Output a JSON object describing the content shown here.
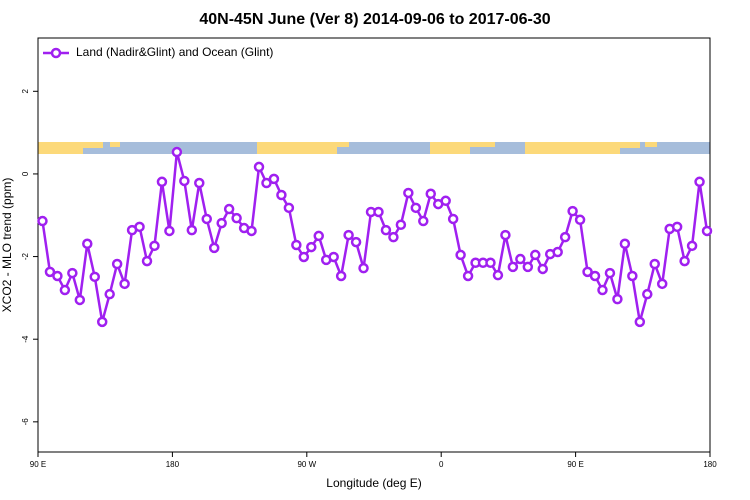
{
  "chart_data": {
    "type": "line",
    "title": "40N-45N June (Ver 8)   2014-09-06 to 2017-06-30",
    "x_label": "Longitude (deg E)",
    "y_label": "XCO2 - MLO trend (ppm)",
    "xlim": [
      90,
      540
    ],
    "xticks": [
      {
        "value": 90,
        "label": "90 E"
      },
      180,
      {
        "value": 270,
        "label": "90 W"
      },
      {
        "value": 360,
        "label": "0"
      },
      {
        "value": 450,
        "label": "90 E"
      },
      {
        "value": 540,
        "label": "180"
      }
    ],
    "ylim": [
      -6.73,
      3.29
    ],
    "yticks": [
      -6,
      -4,
      -2,
      0,
      2
    ],
    "legend_position": "top-left",
    "x": [
      93,
      98,
      103,
      108,
      113,
      118,
      123,
      128,
      133,
      138,
      143,
      148,
      153,
      158,
      163,
      168,
      173,
      178,
      183,
      188,
      193,
      198,
      203,
      208,
      213,
      218,
      223,
      228,
      233,
      238,
      243,
      248,
      253,
      258,
      263,
      268,
      273,
      278,
      283,
      288,
      293,
      298,
      303,
      308,
      313,
      318,
      323,
      328,
      333,
      338,
      343,
      348,
      353,
      358,
      363,
      368,
      373,
      378,
      383,
      388,
      393,
      398,
      403,
      408,
      413,
      418,
      423,
      428,
      433,
      438,
      443,
      448,
      453,
      458,
      463,
      468,
      473,
      478,
      483,
      488,
      493,
      498,
      503,
      508,
      513,
      518,
      523,
      528,
      533,
      538
    ],
    "series": [
      {
        "name": "Land (Nadir&Glint) and Ocean (Glint)",
        "color": "#a020f0",
        "values": [
          -1.14,
          -2.37,
          -2.47,
          -2.81,
          -2.4,
          -3.05,
          -1.69,
          -2.49,
          -3.58,
          -2.91,
          -2.18,
          -2.66,
          -1.36,
          -1.28,
          -2.11,
          -1.74,
          -0.19,
          -1.38,
          0.53,
          -0.17,
          -1.36,
          -0.22,
          -1.09,
          -1.79,
          -1.19,
          -0.85,
          -1.07,
          -1.31,
          -1.38,
          0.17,
          -0.22,
          -0.12,
          -0.51,
          -0.82,
          -1.72,
          -2.01,
          -1.77,
          -1.5,
          -2.08,
          -2.01,
          -2.47,
          -1.48,
          -1.65,
          -2.28,
          -0.92,
          -0.92,
          -1.36,
          -1.53,
          -1.23,
          -0.46,
          -0.82,
          -1.14,
          -0.48,
          -0.73,
          -0.65,
          -1.09,
          -1.96,
          -2.47,
          -2.15,
          -2.15,
          -2.15,
          -2.45,
          -1.48,
          -2.25,
          -2.06,
          -2.25,
          -1.96,
          -2.3,
          -1.94,
          -1.89,
          -1.53,
          -0.9,
          -1.11,
          -2.37,
          -2.47,
          -2.81,
          -2.4,
          -3.03,
          -1.69,
          -2.47,
          -3.58,
          -2.91,
          -2.18,
          -2.66,
          -1.33,
          -1.28,
          -2.11,
          -1.74,
          -0.19,
          -1.38
        ]
      }
    ]
  }
}
